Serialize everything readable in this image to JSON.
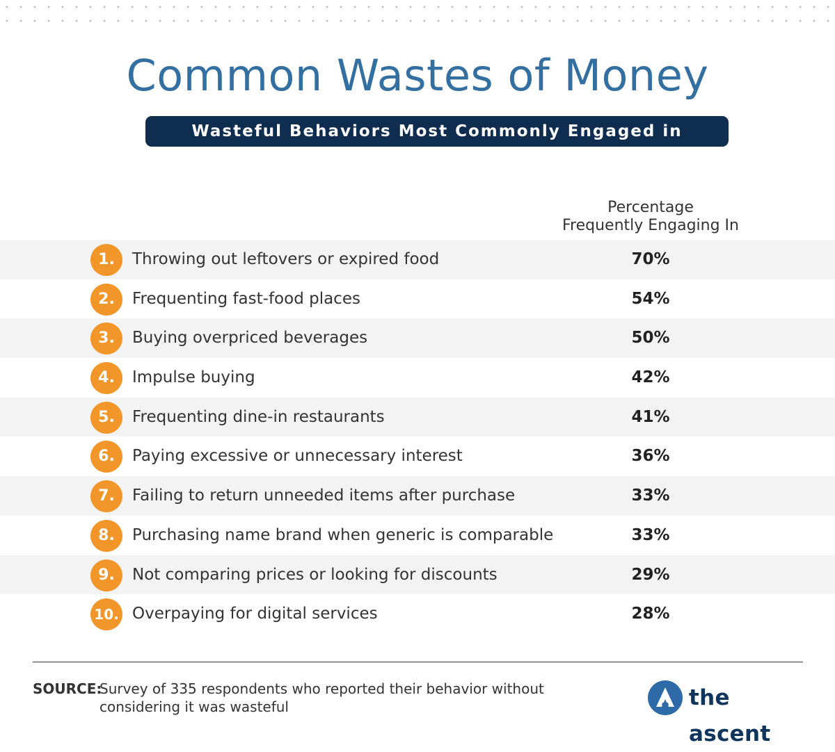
{
  "title": "Common Wastes of Money",
  "subtitle": "Wasteful Behaviors Most Commonly Engaged in",
  "column_header": {
    "line1": "Percentage",
    "line2": "Frequently Engaging In"
  },
  "rows": [
    {
      "num": "1.",
      "label": "Throwing out leftovers or expired food",
      "value": "70%"
    },
    {
      "num": "2.",
      "label": "Frequenting fast-food places",
      "value": "54%"
    },
    {
      "num": "3.",
      "label": "Buying overpriced beverages",
      "value": "50%"
    },
    {
      "num": "4.",
      "label": "Impulse buying",
      "value": "42%"
    },
    {
      "num": "5.",
      "label": "Frequenting dine-in restaurants",
      "value": "41%"
    },
    {
      "num": "6.",
      "label": "Paying excessive or unnecessary interest",
      "value": "36%"
    },
    {
      "num": "7.",
      "label": "Failing to return unneeded items after purchase",
      "value": "33%"
    },
    {
      "num": "8.",
      "label": "Purchasing name brand when generic is comparable",
      "value": "33%"
    },
    {
      "num": "9.",
      "label": "Not comparing prices or looking for discounts",
      "value": "29%"
    },
    {
      "num": "10.",
      "label": "Overpaying for digital services",
      "value": "28%"
    }
  ],
  "source": {
    "label": "SOURCE:",
    "text": "Survey of 335 respondents who reported their behavior without considering it was wasteful"
  },
  "brand": {
    "name": "the ascent"
  },
  "colors": {
    "title": "#336fa0",
    "banner": "#0e2d4f",
    "badge": "#f3962a",
    "row_shade": "#f3f3f3",
    "brand": "#10355c",
    "logo_mark": "#2e6aa8"
  },
  "chart_data": {
    "type": "table",
    "title": "Common Wastes of Money",
    "subtitle": "Wasteful Behaviors Most Commonly Engaged in",
    "columns": [
      "",
      "Percentage Frequently Engaging In"
    ],
    "categories": [
      "Throwing out leftovers or expired food",
      "Frequenting fast-food places",
      "Buying overpriced beverages",
      "Impulse buying",
      "Frequenting dine-in restaurants",
      "Paying excessive or unnecessary interest",
      "Failing to return unneeded items after purchase",
      "Purchasing name brand when generic is comparable",
      "Not comparing prices or looking for discounts",
      "Overpaying for digital services"
    ],
    "values": [
      70,
      54,
      50,
      42,
      41,
      36,
      33,
      33,
      29,
      28
    ],
    "unit": "%"
  }
}
